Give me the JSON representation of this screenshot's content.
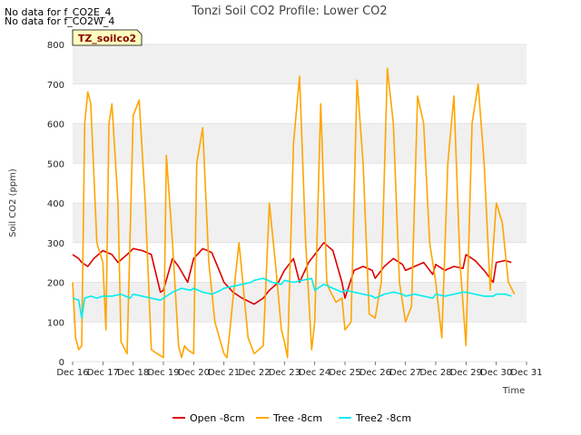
{
  "no_data_notes": [
    "No data for f_CO2E_4",
    "No data for f_CO2W_4"
  ],
  "badge_label": "TZ_soilco2",
  "colors": {
    "band": "#f0f0f0",
    "badge_bg": "#ffffc0",
    "badge_text": "#8b0000"
  },
  "chart_data": {
    "type": "line",
    "title": "Tonzi Soil CO2 Profile: Lower CO2",
    "xlabel": "Time",
    "ylabel": "Soil CO2 (ppm)",
    "xlim": [
      16,
      31
    ],
    "ylim": [
      0,
      800
    ],
    "x_ticks": [
      16,
      17,
      18,
      19,
      20,
      21,
      22,
      23,
      24,
      25,
      26,
      27,
      28,
      29,
      30,
      31
    ],
    "x_tick_labels": [
      "Dec 16",
      "Dec 17",
      "Dec 18",
      "Dec 19",
      "Dec 20",
      "Dec 21",
      "Dec 22",
      "Dec 23",
      "Dec 24",
      "Dec 25",
      "Dec 26",
      "Dec 27",
      "Dec 28",
      "Dec 29",
      "Dec 30",
      "Dec 31"
    ],
    "y_ticks": [
      0,
      100,
      200,
      300,
      400,
      500,
      600,
      700,
      800
    ],
    "y_tick_labels": [
      "0",
      "100",
      "200",
      "300",
      "400",
      "500",
      "600",
      "700",
      "800"
    ],
    "grid": true,
    "legend_position": "bottom",
    "series": [
      {
        "name": "Open -8cm",
        "color": "#dd0000",
        "x": [
          16.0,
          16.2,
          16.3,
          16.5,
          16.7,
          17.0,
          17.3,
          17.5,
          17.8,
          18.0,
          18.3,
          18.6,
          18.9,
          19.0,
          19.3,
          19.5,
          19.8,
          20.0,
          20.3,
          20.6,
          20.9,
          21.0,
          21.3,
          21.6,
          22.0,
          22.3,
          22.5,
          22.8,
          23.0,
          23.3,
          23.5,
          23.8,
          24.0,
          24.3,
          24.6,
          24.9,
          25.0,
          25.3,
          25.6,
          25.9,
          26.0,
          26.3,
          26.6,
          26.9,
          27.0,
          27.3,
          27.6,
          27.9,
          28.0,
          28.3,
          28.6,
          28.9,
          29.0,
          29.3,
          29.6,
          29.9,
          30.0,
          30.3,
          30.5
        ],
        "y": [
          270,
          260,
          250,
          240,
          260,
          280,
          270,
          250,
          270,
          285,
          280,
          270,
          175,
          180,
          260,
          240,
          200,
          260,
          285,
          275,
          220,
          200,
          175,
          160,
          145,
          160,
          180,
          200,
          230,
          260,
          200,
          250,
          270,
          300,
          280,
          200,
          160,
          230,
          240,
          230,
          210,
          240,
          260,
          245,
          230,
          240,
          250,
          220,
          245,
          230,
          240,
          235,
          270,
          255,
          230,
          200,
          250,
          255,
          250
        ]
      },
      {
        "name": "Tree -8cm",
        "color": "#ffa500",
        "x": [
          16.0,
          16.1,
          16.2,
          16.3,
          16.4,
          16.5,
          16.6,
          16.8,
          17.0,
          17.1,
          17.2,
          17.3,
          17.5,
          17.6,
          17.8,
          18.0,
          18.2,
          18.4,
          18.6,
          18.8,
          19.0,
          19.1,
          19.3,
          19.5,
          19.6,
          19.7,
          19.8,
          20.0,
          20.1,
          20.3,
          20.5,
          20.7,
          21.0,
          21.1,
          21.2,
          21.3,
          21.5,
          21.8,
          22.0,
          22.3,
          22.5,
          22.7,
          22.9,
          23.0,
          23.1,
          23.3,
          23.5,
          23.7,
          23.9,
          24.0,
          24.2,
          24.4,
          24.5,
          24.7,
          24.9,
          25.0,
          25.2,
          25.4,
          25.6,
          25.8,
          26.0,
          26.2,
          26.4,
          26.6,
          26.8,
          27.0,
          27.2,
          27.4,
          27.6,
          27.8,
          28.0,
          28.2,
          28.4,
          28.6,
          28.8,
          29.0,
          29.2,
          29.4,
          29.6,
          29.8,
          30.0,
          30.2,
          30.4,
          30.6
        ],
        "y": [
          200,
          60,
          30,
          40,
          600,
          680,
          650,
          300,
          250,
          80,
          600,
          650,
          400,
          50,
          20,
          620,
          660,
          400,
          30,
          20,
          10,
          520,
          300,
          40,
          10,
          40,
          30,
          20,
          500,
          590,
          250,
          100,
          20,
          10,
          80,
          160,
          300,
          60,
          20,
          40,
          400,
          250,
          80,
          50,
          10,
          550,
          720,
          300,
          30,
          100,
          650,
          200,
          180,
          150,
          160,
          80,
          100,
          710,
          500,
          120,
          110,
          200,
          740,
          600,
          200,
          100,
          140,
          670,
          600,
          300,
          200,
          60,
          500,
          670,
          250,
          40,
          600,
          700,
          500,
          180,
          400,
          350,
          200,
          170
        ]
      },
      {
        "name": "Tree2 -8cm",
        "color": "#00eeee",
        "x": [
          16.0,
          16.2,
          16.3,
          16.4,
          16.6,
          16.8,
          17.0,
          17.3,
          17.6,
          17.9,
          18.0,
          18.3,
          18.6,
          18.9,
          19.0,
          19.3,
          19.6,
          19.9,
          20.0,
          20.3,
          20.6,
          20.9,
          21.0,
          21.3,
          21.6,
          21.9,
          22.0,
          22.3,
          22.6,
          22.9,
          23.0,
          23.3,
          23.6,
          23.9,
          24.0,
          24.3,
          24.6,
          24.9,
          25.0,
          25.3,
          25.6,
          25.9,
          26.0,
          26.3,
          26.6,
          26.9,
          27.0,
          27.3,
          27.6,
          27.9,
          28.0,
          28.3,
          28.6,
          28.9,
          29.0,
          29.3,
          29.6,
          29.9,
          30.0,
          30.3,
          30.5
        ],
        "y": [
          160,
          155,
          110,
          160,
          165,
          160,
          165,
          165,
          170,
          160,
          170,
          165,
          160,
          155,
          160,
          175,
          185,
          180,
          185,
          175,
          170,
          180,
          185,
          190,
          195,
          200,
          205,
          210,
          200,
          195,
          205,
          200,
          205,
          210,
          180,
          195,
          185,
          175,
          180,
          175,
          170,
          165,
          160,
          170,
          175,
          170,
          165,
          170,
          165,
          160,
          170,
          165,
          170,
          175,
          175,
          170,
          165,
          165,
          170,
          170,
          165
        ]
      }
    ]
  }
}
